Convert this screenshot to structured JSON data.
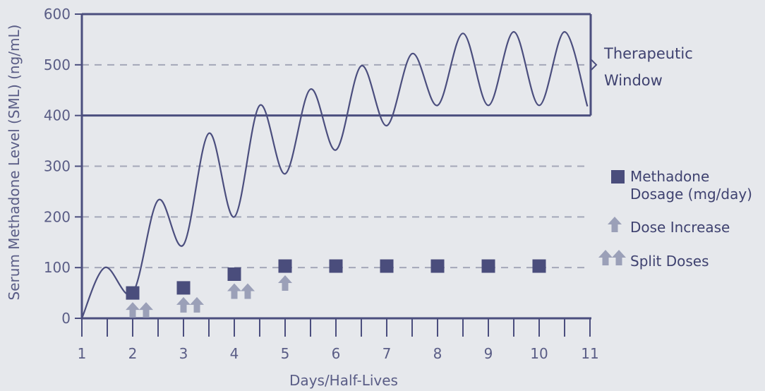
{
  "chart_data": {
    "type": "line",
    "xlabel": "Days/Half-Lives",
    "ylabel": "Serum Methadone Level (SML) (ng/mL)",
    "xlim": [
      1,
      11
    ],
    "ylim": [
      0,
      600
    ],
    "x_ticks": [
      "1",
      "2",
      "3",
      "4",
      "5",
      "6",
      "7",
      "8",
      "9",
      "10",
      "11"
    ],
    "y_ticks": [
      "0",
      "100",
      "200",
      "300",
      "400",
      "500",
      "600"
    ],
    "grid": "dashed horizontal",
    "colors": {
      "line": "#4b4e7e",
      "marker": "#4a4d7c",
      "arrow": "#9ba0b8",
      "grid": "#a4a7b8",
      "text": "#5a5d86"
    },
    "therapeutic_window": {
      "label_line1": "Therapeutic",
      "label_line2": "Window",
      "range": [
        400,
        600
      ]
    },
    "series": [
      {
        "name": "Serum Methadone Level",
        "points": [
          [
            1.0,
            0
          ],
          [
            1.45,
            100
          ],
          [
            2.0,
            50
          ],
          [
            2.5,
            233
          ],
          [
            3.0,
            145
          ],
          [
            3.5,
            365
          ],
          [
            4.0,
            200
          ],
          [
            4.5,
            420
          ],
          [
            5.0,
            285
          ],
          [
            5.5,
            452
          ],
          [
            6.0,
            332
          ],
          [
            6.5,
            498
          ],
          [
            7.0,
            380
          ],
          [
            7.5,
            522
          ],
          [
            8.0,
            420
          ],
          [
            8.5,
            562
          ],
          [
            9.0,
            420
          ],
          [
            9.5,
            565
          ],
          [
            10.0,
            420
          ],
          [
            10.5,
            565
          ],
          [
            10.95,
            418
          ]
        ]
      }
    ],
    "dosage_markers": [
      {
        "x": 2,
        "y": 50
      },
      {
        "x": 3,
        "y": 60
      },
      {
        "x": 4,
        "y": 87
      },
      {
        "x": 5,
        "y": 103
      },
      {
        "x": 6,
        "y": 103
      },
      {
        "x": 7,
        "y": 103
      },
      {
        "x": 8,
        "y": 103
      },
      {
        "x": 9,
        "y": 103
      },
      {
        "x": 10,
        "y": 103
      }
    ],
    "dose_arrows": [
      {
        "x": 2,
        "type": "split"
      },
      {
        "x": 3,
        "type": "split"
      },
      {
        "x": 4,
        "type": "split"
      },
      {
        "x": 5,
        "type": "increase"
      }
    ],
    "legend": {
      "placement": "right",
      "items": [
        {
          "line1": "Methadone",
          "line2": "Dosage (mg/day)",
          "symbol": "square"
        },
        {
          "line1": "Dose Increase",
          "symbol": "arrow"
        },
        {
          "line1": "Split Doses",
          "symbol": "double-arrow"
        }
      ]
    }
  }
}
